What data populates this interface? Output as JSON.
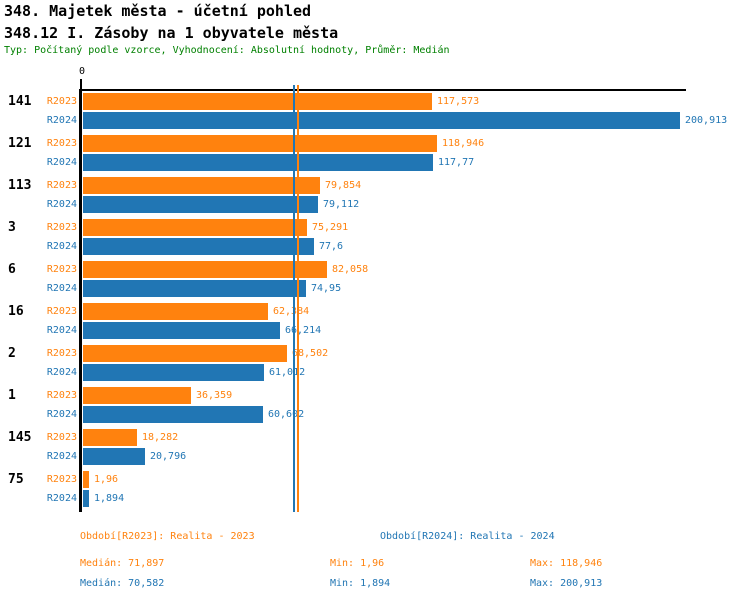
{
  "title": "348. Majetek města - účetní pohled",
  "subtitle": "348.12 I. Zásoby na 1 obyvatele města",
  "meta": "Typ: Počítaný podle vzorce, Vyhodnocení: Absolutní hodnoty, Průměr: Medián",
  "colors": {
    "r2023": "#ff820e",
    "r2024": "#2176b4",
    "axis": "#000000",
    "meta_text": "#008000"
  },
  "chart_data": {
    "type": "bar",
    "orientation": "horizontal",
    "title": "348.12 I. Zásoby na 1 obyvatele města",
    "xlabel": "",
    "ylabel": "",
    "xlim": [
      0,
      203
    ],
    "xticks": [
      "0"
    ],
    "grid": false,
    "legend_position": "bottom",
    "categories": [
      "141",
      "121",
      "113",
      "3",
      "6",
      "16",
      "2",
      "1",
      "145",
      "75"
    ],
    "series": [
      {
        "name": "R2023",
        "color": "#ff820e",
        "values": [
          117.573,
          118.946,
          79.854,
          75.291,
          82.058,
          62.384,
          68.502,
          36.359,
          18.282,
          1.96
        ],
        "labels": [
          "117,573",
          "118,946",
          "79,854",
          "75,291",
          "82,058",
          "62,384",
          "68,502",
          "36,359",
          "18,282",
          "1,96"
        ]
      },
      {
        "name": "R2024",
        "color": "#2176b4",
        "values": [
          200.913,
          117.77,
          79.112,
          77.6,
          74.95,
          66.214,
          61.012,
          60.602,
          20.796,
          1.894
        ],
        "labels": [
          "200,913",
          "117,77",
          "79,112",
          "77,6",
          "74,95",
          "66,214",
          "61,012",
          "60,602",
          "20,796",
          "1,894"
        ]
      }
    ],
    "medians": [
      {
        "series": "R2023",
        "value": 71.897,
        "label": "71,897"
      },
      {
        "series": "R2024",
        "value": 70.582,
        "label": "70,582"
      }
    ]
  },
  "legend": {
    "r2023": {
      "period": "Období[R2023]: Realita - 2023",
      "median": "Medián: 71,897",
      "min": "Min: 1,96",
      "max": "Max: 118,946"
    },
    "r2024": {
      "period": "Období[R2024]: Realita - 2024",
      "median": "Medián: 70,582",
      "min": "Min: 1,894",
      "max": "Max: 200,913"
    }
  }
}
